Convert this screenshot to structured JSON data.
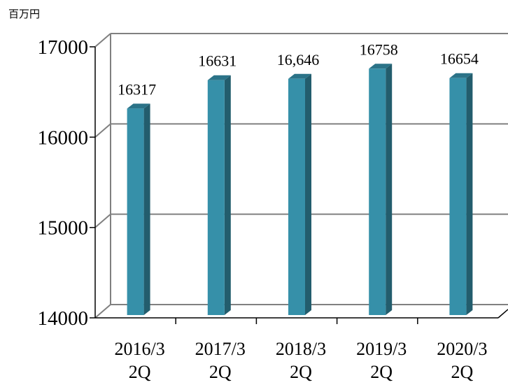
{
  "chart_data": {
    "type": "bar",
    "unit": "百万円",
    "categories": [
      [
        "2016/3",
        "2Q"
      ],
      [
        "2017/3",
        "2Q"
      ],
      [
        "2018/3",
        "2Q"
      ],
      [
        "2019/3",
        "2Q"
      ],
      [
        "2020/3",
        "2Q"
      ]
    ],
    "values": [
      16317,
      16631,
      16646,
      16758,
      16654
    ],
    "data_labels": [
      "16317",
      "16631",
      "16,646",
      "16758",
      "16654"
    ],
    "ylim": [
      14000,
      17000
    ],
    "yticks": [
      14000,
      15000,
      16000,
      17000
    ],
    "grid": true,
    "style": "3d-column",
    "colors": {
      "bar_front": "#3690a9",
      "bar_side": "#235d6d",
      "bar_top": "#2b7388",
      "grid": "#808080",
      "axis": "#000000"
    }
  }
}
